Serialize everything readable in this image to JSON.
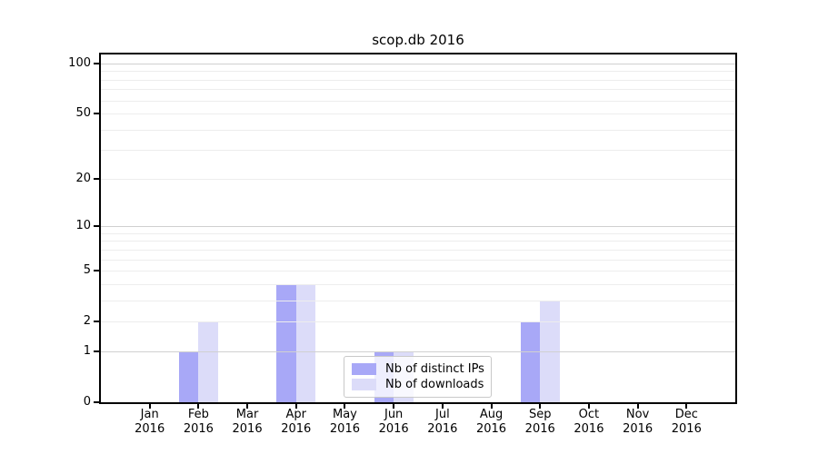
{
  "chart_data": {
    "type": "bar",
    "title": "scop.db 2016",
    "months": [
      "Jan",
      "Feb",
      "Mar",
      "Apr",
      "May",
      "Jun",
      "Jul",
      "Aug",
      "Sep",
      "Oct",
      "Nov",
      "Dec"
    ],
    "year_label": "2016",
    "series": [
      {
        "name": "Nb of distinct IPs",
        "key": "distinct-ips",
        "color": "#a8a8f7",
        "values": [
          0,
          1,
          0,
          4,
          0,
          1,
          0,
          0,
          2,
          0,
          0,
          0
        ]
      },
      {
        "name": "Nb of downloads",
        "key": "downloads",
        "color": "#dcdcf9",
        "values": [
          0,
          2,
          0,
          4,
          0,
          1,
          0,
          0,
          3,
          0,
          0,
          0
        ]
      }
    ],
    "y_axis": {
      "scale": "log1p",
      "ylim": [
        0,
        115
      ],
      "tick_values": [
        100,
        50,
        20,
        10,
        5,
        2,
        1,
        0
      ],
      "tick_labels": [
        "100",
        "50",
        "20",
        "10",
        "5",
        "2",
        "1",
        "0"
      ],
      "major_gridlines": [
        1,
        10,
        100
      ],
      "minor_gridlines": [
        2,
        3,
        4,
        5,
        6,
        7,
        8,
        9,
        20,
        30,
        40,
        50,
        60,
        70,
        80,
        90
      ]
    },
    "grid": true,
    "grid_above_bars": true,
    "legend": {
      "position": "lower center"
    },
    "colors": {
      "major_grid": "#d0d0d0",
      "minor_grid": "#ededed",
      "spine": "#000000",
      "background": "#ffffff",
      "text": "#000000"
    }
  }
}
